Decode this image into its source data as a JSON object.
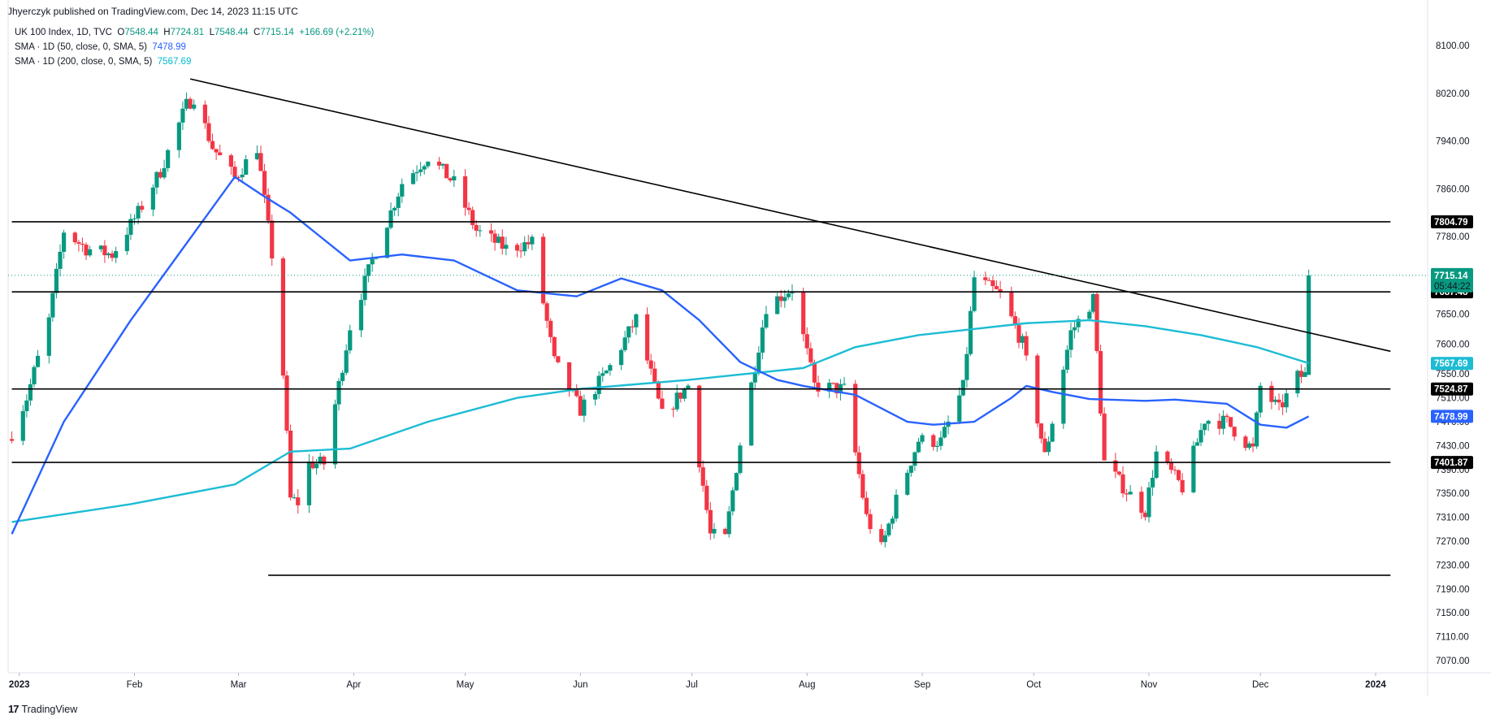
{
  "header": {
    "publish_line": "Jhyerczyk published on TradingView.com, Dec 14, 2023 11:15 UTC",
    "symbol_label": "UK 100 Index, 1D, TVC",
    "open_label": "O",
    "open": "7548.44",
    "high_label": "H",
    "high": "7724.81",
    "low_label": "L",
    "low": "7548.44",
    "close_label": "C",
    "close": "7715.14",
    "change": "+166.69 (+2.21%)",
    "sma50_label": "SMA · 1D (50, close, 0, SMA, 5)",
    "sma50_value": "7478.99",
    "sma200_label": "SMA · 1D (200, close, 0, SMA, 5)",
    "sma200_value": "7567.69"
  },
  "footer": {
    "brand": "TradingView",
    "logo_icon": "tradingview-logo-icon"
  },
  "colors": {
    "up": "#089981",
    "down": "#f23645",
    "sma50": "#2962ff",
    "sma200": "#1cbcd4",
    "line": "#000000"
  },
  "chart_data": {
    "type": "candlestick",
    "title": "UK 100 Index, 1D, TVC",
    "ylim": [
      7040,
      8130
    ],
    "y_ticks": [
      7070,
      7110,
      7150,
      7190,
      7230,
      7270,
      7310,
      7350,
      7390,
      7430,
      7470,
      7510,
      7550,
      7600,
      7650,
      7700,
      7780,
      7860,
      7940,
      8020,
      8100
    ],
    "y_tick_labels": [
      "7070.00",
      "7110.00",
      "7150.00",
      "7190.00",
      "7230.00",
      "7270.00",
      "7310.00",
      "7350.00",
      "7390.00",
      "7430.00",
      "7470.00",
      "7510.00",
      "7550.00",
      "7600.00",
      "7650.00",
      "7700.00",
      "7780.00",
      "7860.00",
      "7940.00",
      "8020.00",
      "8100.00"
    ],
    "x_ticks": [
      "2023",
      "Feb",
      "Mar",
      "Apr",
      "May",
      "Jun",
      "Jul",
      "Aug",
      "Sep",
      "Oct",
      "Nov",
      "Dec",
      "2024"
    ],
    "x_tick_dates": [
      "2023-01-01",
      "2023-02-01",
      "2023-03-01",
      "2023-04-01",
      "2023-05-01",
      "2023-06-01",
      "2023-07-01",
      "2023-08-01",
      "2023-09-01",
      "2023-10-01",
      "2023-11-01",
      "2023-12-01",
      "2024-01-01"
    ],
    "price_path": [
      [
        "2022-12-30",
        7451
      ],
      [
        "2023-01-03",
        7510
      ],
      [
        "2023-01-09",
        7640
      ],
      [
        "2023-01-13",
        7790
      ],
      [
        "2023-01-19",
        7760
      ],
      [
        "2023-01-26",
        7750
      ],
      [
        "2023-02-02",
        7820
      ],
      [
        "2023-02-08",
        7890
      ],
      [
        "2023-02-15",
        8000
      ],
      [
        "2023-02-17",
        8014
      ],
      [
        "2023-02-22",
        7930
      ],
      [
        "2023-02-28",
        7878
      ],
      [
        "2023-03-06",
        7930
      ],
      [
        "2023-03-10",
        7750
      ],
      [
        "2023-03-13",
        7550
      ],
      [
        "2023-03-15",
        7340
      ],
      [
        "2023-03-17",
        7335
      ],
      [
        "2023-03-20",
        7400
      ],
      [
        "2023-03-24",
        7400
      ],
      [
        "2023-03-31",
        7630
      ],
      [
        "2023-04-06",
        7740
      ],
      [
        "2023-04-14",
        7870
      ],
      [
        "2023-04-21",
        7914
      ],
      [
        "2023-04-28",
        7870
      ],
      [
        "2023-05-04",
        7790
      ],
      [
        "2023-05-12",
        7760
      ],
      [
        "2023-05-19",
        7770
      ],
      [
        "2023-05-25",
        7570
      ],
      [
        "2023-06-01",
        7490
      ],
      [
        "2023-06-09",
        7562
      ],
      [
        "2023-06-16",
        7642
      ],
      [
        "2023-06-23",
        7480
      ],
      [
        "2023-06-30",
        7531
      ],
      [
        "2023-07-06",
        7280
      ],
      [
        "2023-07-10",
        7274
      ],
      [
        "2023-07-14",
        7434
      ],
      [
        "2023-07-21",
        7663
      ],
      [
        "2023-07-28",
        7694
      ],
      [
        "2023-08-03",
        7530
      ],
      [
        "2023-08-11",
        7524
      ],
      [
        "2023-08-17",
        7310
      ],
      [
        "2023-08-21",
        7257
      ],
      [
        "2023-08-25",
        7338
      ],
      [
        "2023-08-31",
        7439
      ],
      [
        "2023-09-06",
        7437
      ],
      [
        "2023-09-12",
        7527
      ],
      [
        "2023-09-15",
        7711
      ],
      [
        "2023-09-22",
        7683
      ],
      [
        "2023-09-28",
        7601
      ],
      [
        "2023-10-04",
        7412
      ],
      [
        "2023-10-11",
        7620
      ],
      [
        "2023-10-17",
        7675
      ],
      [
        "2023-10-20",
        7402
      ],
      [
        "2023-10-26",
        7354
      ],
      [
        "2023-10-31",
        7321
      ],
      [
        "2023-11-03",
        7417
      ],
      [
        "2023-11-10",
        7360
      ],
      [
        "2023-11-16",
        7474
      ],
      [
        "2023-11-22",
        7469
      ],
      [
        "2023-11-29",
        7423
      ],
      [
        "2023-12-01",
        7529
      ],
      [
        "2023-12-06",
        7490
      ],
      [
        "2023-12-11",
        7545
      ],
      [
        "2023-12-13",
        7548
      ],
      [
        "2023-12-14",
        7715
      ]
    ],
    "last_candle": {
      "date": "2023-12-14",
      "open": 7548.44,
      "high": 7724.81,
      "low": 7548.44,
      "close": 7715.14
    },
    "sma50": [
      [
        "2022-12-30",
        7282
      ],
      [
        "2023-01-13",
        7470
      ],
      [
        "2023-01-31",
        7640
      ],
      [
        "2023-02-14",
        7760
      ],
      [
        "2023-02-28",
        7880
      ],
      [
        "2023-03-08",
        7847
      ],
      [
        "2023-03-15",
        7820
      ],
      [
        "2023-03-31",
        7740
      ],
      [
        "2023-04-14",
        7750
      ],
      [
        "2023-04-28",
        7740
      ],
      [
        "2023-05-15",
        7690
      ],
      [
        "2023-05-31",
        7680
      ],
      [
        "2023-06-12",
        7710
      ],
      [
        "2023-06-23",
        7690
      ],
      [
        "2023-07-03",
        7640
      ],
      [
        "2023-07-14",
        7570
      ],
      [
        "2023-07-24",
        7540
      ],
      [
        "2023-07-31",
        7530
      ],
      [
        "2023-08-14",
        7515
      ],
      [
        "2023-08-28",
        7470
      ],
      [
        "2023-09-04",
        7465
      ],
      [
        "2023-09-15",
        7470
      ],
      [
        "2023-09-25",
        7510
      ],
      [
        "2023-09-29",
        7530
      ],
      [
        "2023-10-06",
        7520
      ],
      [
        "2023-10-16",
        7508
      ],
      [
        "2023-10-31",
        7505
      ],
      [
        "2023-11-08",
        7507
      ],
      [
        "2023-11-22",
        7500
      ],
      [
        "2023-12-01",
        7465
      ],
      [
        "2023-12-08",
        7460
      ],
      [
        "2023-12-14",
        7479
      ]
    ],
    "sma200": [
      [
        "2022-12-30",
        7302
      ],
      [
        "2023-01-31",
        7332
      ],
      [
        "2023-02-28",
        7365
      ],
      [
        "2023-03-15",
        7420
      ],
      [
        "2023-03-31",
        7425
      ],
      [
        "2023-04-21",
        7470
      ],
      [
        "2023-05-15",
        7510
      ],
      [
        "2023-06-01",
        7525
      ],
      [
        "2023-06-30",
        7540
      ],
      [
        "2023-07-31",
        7560
      ],
      [
        "2023-08-14",
        7595
      ],
      [
        "2023-08-31",
        7615
      ],
      [
        "2023-09-29",
        7635
      ],
      [
        "2023-10-16",
        7640
      ],
      [
        "2023-10-31",
        7630
      ],
      [
        "2023-11-15",
        7615
      ],
      [
        "2023-11-30",
        7595
      ],
      [
        "2023-12-14",
        7568
      ]
    ],
    "horizontal_levels": [
      {
        "price": 7804.79,
        "label": "7804.79",
        "from": "2022-12-30",
        "to": "2024-01-05"
      },
      {
        "price": 7687.48,
        "label": "7687.48",
        "from": "2022-12-30",
        "to": "2024-01-05"
      },
      {
        "price": 7524.87,
        "label": "7524.87",
        "from": "2022-12-30",
        "to": "2024-01-05"
      },
      {
        "price": 7401.87,
        "label": "7401.87",
        "from": "2022-12-30",
        "to": "2024-01-05"
      },
      {
        "price": 7213,
        "label": "",
        "from": "2023-03-09",
        "to": "2024-01-05"
      }
    ],
    "trend_line": {
      "from": [
        "2023-02-16",
        8044
      ],
      "to": [
        "2024-01-05",
        7588
      ]
    },
    "price_tags": [
      {
        "label": "7715.14",
        "sub": "05:44:22",
        "price": 7715.14,
        "style": "up"
      },
      {
        "label": "7567.69",
        "price": 7567.69,
        "style": "sma200"
      },
      {
        "label": "7478.99",
        "price": 7478.99,
        "style": "sma50"
      }
    ]
  }
}
